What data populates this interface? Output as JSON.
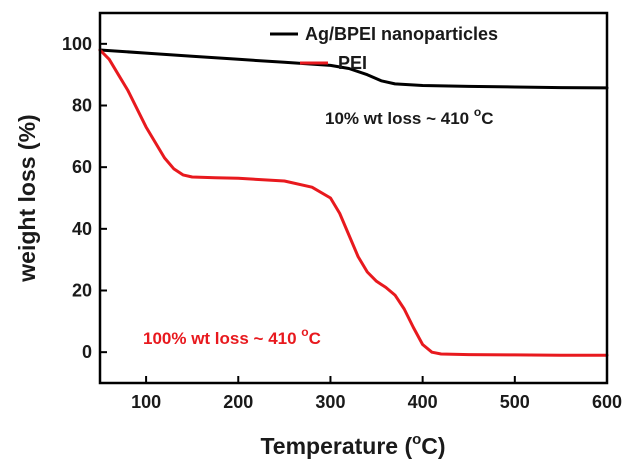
{
  "chart_data": {
    "type": "line",
    "xlabel": "Temperature (",
    "xlabel_unit_sup": "o",
    "xlabel_unit_tail": "C)",
    "ylabel": "weight loss (%)",
    "xlim": [
      50,
      600
    ],
    "ylim": [
      -10,
      110
    ],
    "xticks": [
      100,
      200,
      300,
      400,
      500,
      600
    ],
    "yticks": [
      0,
      20,
      40,
      60,
      80,
      100
    ],
    "legend_position": "top-right",
    "series": [
      {
        "name": "Ag/BPEI nanoparticles",
        "color": "#000000",
        "x": [
          50,
          100,
          150,
          200,
          250,
          300,
          320,
          340,
          355,
          370,
          400,
          450,
          500,
          550,
          600
        ],
        "y": [
          98,
          97,
          96,
          95,
          94,
          93,
          92,
          90,
          88,
          87,
          86.5,
          86.2,
          86,
          85.8,
          85.7
        ]
      },
      {
        "name": "PEI",
        "color": "#e8191e",
        "x": [
          50,
          60,
          70,
          80,
          90,
          100,
          110,
          120,
          130,
          140,
          150,
          175,
          200,
          250,
          280,
          300,
          310,
          320,
          330,
          340,
          350,
          360,
          370,
          380,
          390,
          400,
          410,
          420,
          450,
          500,
          550,
          600
        ],
        "y": [
          98,
          95,
          90,
          85,
          79,
          73,
          68,
          63,
          59.5,
          57.5,
          56.8,
          56.6,
          56.4,
          55.5,
          53.5,
          50,
          45,
          38,
          31,
          26,
          23,
          21,
          18.5,
          14,
          8,
          2.5,
          0,
          -0.6,
          -0.8,
          -0.9,
          -1,
          -1
        ]
      }
    ],
    "annotations": [
      {
        "text": "10% wt loss ~ 410 ",
        "sup": "o",
        "tail": "C",
        "color": "#1a1a1a"
      },
      {
        "text": "100% wt loss ~ 410 ",
        "sup": "o",
        "tail": "C",
        "color": "#e8191e"
      }
    ]
  }
}
